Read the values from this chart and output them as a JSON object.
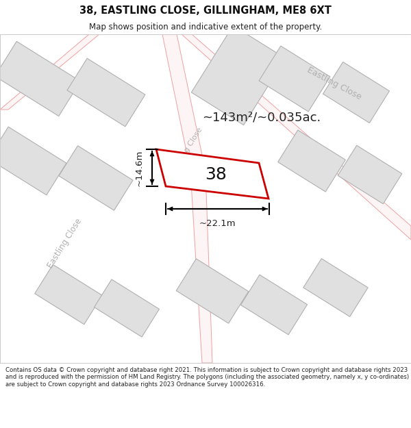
{
  "title": "38, EASTLING CLOSE, GILLINGHAM, ME8 6XT",
  "subtitle": "Map shows position and indicative extent of the property.",
  "footer": "Contains OS data © Crown copyright and database right 2021. This information is subject to Crown copyright and database rights 2023 and is reproduced with the permission of HM Land Registry. The polygons (including the associated geometry, namely x, y co-ordinates) are subject to Crown copyright and database rights 2023 Ordnance Survey 100026316.",
  "map_bg": "#f7f6f6",
  "building_fill": "#e0e0e0",
  "building_edge": "#b0b0b0",
  "road_outline_color": "#f0a0a0",
  "highlight_color": "#cc0000",
  "highlight_fill": "#ffffff",
  "road_label_color": "#b0b0b0",
  "annotation_color": "#222222",
  "area_label": "~143m²/~0.035ac.",
  "width_label": "~22.1m",
  "height_label": "~14.6m",
  "number_label": "38"
}
